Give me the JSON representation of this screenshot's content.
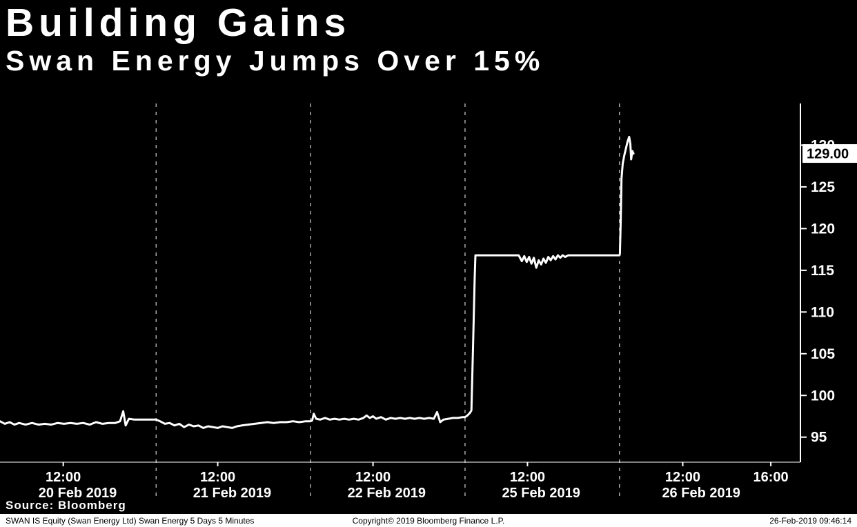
{
  "title": "Building Gains",
  "subtitle": "Swan Energy Jumps Over 15%",
  "source_label": "Source: Bloomberg",
  "last_price_label": "129.00",
  "footer": {
    "left": "SWAN IS Equity (Swan Energy Ltd) Swan Energy 5 Days 5 Minutes",
    "center": "Copyright© 2019 Bloomberg Finance L.P.",
    "right": "26-Feb-2019 09:46:14"
  },
  "colors": {
    "background": "#000000",
    "line": "#ffffff",
    "text": "#ffffff",
    "axis": "#ffffff",
    "last_price_box_bg": "#ffffff",
    "last_price_box_text": "#000000",
    "footer_bg": "#ffffff",
    "footer_text": "#000000"
  },
  "chart_data": {
    "type": "line",
    "title": "Building Gains",
    "subtitle": "Swan Energy Jumps Over 15%",
    "series_name": "SWAN IS Equity (Swan Energy Ltd) last price, 5 days 5 minutes",
    "ylim": [
      92,
      135
    ],
    "yticks": [
      95,
      100,
      105,
      110,
      115,
      120,
      125,
      130
    ],
    "last_price": 129.0,
    "grid": "vertical-day-separators-dashed",
    "legend": "none",
    "y_axis_position": "right",
    "day_separators": [
      0.195,
      0.388,
      0.581,
      0.774
    ],
    "x_time_ticks": [
      {
        "label": "12:00",
        "x": 0.079
      },
      {
        "label": "12:00",
        "x": 0.272
      },
      {
        "label": "12:00",
        "x": 0.466
      },
      {
        "label": "12:00",
        "x": 0.659
      },
      {
        "label": "12:00",
        "x": 0.853
      },
      {
        "label": "16:00",
        "x": 0.963
      }
    ],
    "x_date_labels": [
      {
        "label": "20 Feb 2019",
        "x": 0.097
      },
      {
        "label": "21 Feb 2019",
        "x": 0.29
      },
      {
        "label": "22 Feb 2019",
        "x": 0.483
      },
      {
        "label": "25 Feb 2019",
        "x": 0.676
      },
      {
        "label": "26 Feb 2019",
        "x": 0.876
      }
    ],
    "points": [
      [
        0.0,
        96.9
      ],
      [
        0.006,
        96.6
      ],
      [
        0.012,
        96.8
      ],
      [
        0.018,
        96.5
      ],
      [
        0.024,
        96.7
      ],
      [
        0.032,
        96.5
      ],
      [
        0.04,
        96.7
      ],
      [
        0.048,
        96.5
      ],
      [
        0.056,
        96.6
      ],
      [
        0.064,
        96.5
      ],
      [
        0.072,
        96.7
      ],
      [
        0.08,
        96.6
      ],
      [
        0.088,
        96.7
      ],
      [
        0.096,
        96.6
      ],
      [
        0.104,
        96.7
      ],
      [
        0.112,
        96.5
      ],
      [
        0.12,
        96.8
      ],
      [
        0.128,
        96.6
      ],
      [
        0.136,
        96.7
      ],
      [
        0.144,
        96.7
      ],
      [
        0.15,
        96.9
      ],
      [
        0.154,
        98.1
      ],
      [
        0.157,
        96.4
      ],
      [
        0.161,
        97.2
      ],
      [
        0.168,
        97.1
      ],
      [
        0.176,
        97.1
      ],
      [
        0.186,
        97.1
      ],
      [
        0.195,
        97.1
      ],
      [
        0.2,
        96.9
      ],
      [
        0.206,
        96.6
      ],
      [
        0.212,
        96.7
      ],
      [
        0.218,
        96.4
      ],
      [
        0.224,
        96.6
      ],
      [
        0.23,
        96.2
      ],
      [
        0.236,
        96.5
      ],
      [
        0.242,
        96.3
      ],
      [
        0.248,
        96.4
      ],
      [
        0.254,
        96.1
      ],
      [
        0.26,
        96.3
      ],
      [
        0.266,
        96.2
      ],
      [
        0.272,
        96.1
      ],
      [
        0.278,
        96.3
      ],
      [
        0.284,
        96.2
      ],
      [
        0.29,
        96.1
      ],
      [
        0.296,
        96.3
      ],
      [
        0.302,
        96.4
      ],
      [
        0.31,
        96.5
      ],
      [
        0.318,
        96.6
      ],
      [
        0.326,
        96.7
      ],
      [
        0.334,
        96.8
      ],
      [
        0.342,
        96.7
      ],
      [
        0.35,
        96.8
      ],
      [
        0.358,
        96.8
      ],
      [
        0.366,
        96.9
      ],
      [
        0.374,
        96.8
      ],
      [
        0.382,
        96.9
      ],
      [
        0.388,
        96.9
      ],
      [
        0.39,
        97.0
      ],
      [
        0.392,
        97.8
      ],
      [
        0.395,
        97.2
      ],
      [
        0.4,
        97.1
      ],
      [
        0.406,
        97.3
      ],
      [
        0.412,
        97.1
      ],
      [
        0.418,
        97.2
      ],
      [
        0.424,
        97.1
      ],
      [
        0.43,
        97.2
      ],
      [
        0.436,
        97.1
      ],
      [
        0.442,
        97.2
      ],
      [
        0.448,
        97.1
      ],
      [
        0.454,
        97.3
      ],
      [
        0.458,
        97.6
      ],
      [
        0.462,
        97.3
      ],
      [
        0.466,
        97.5
      ],
      [
        0.47,
        97.2
      ],
      [
        0.476,
        97.4
      ],
      [
        0.482,
        97.1
      ],
      [
        0.488,
        97.3
      ],
      [
        0.494,
        97.2
      ],
      [
        0.5,
        97.3
      ],
      [
        0.506,
        97.2
      ],
      [
        0.512,
        97.3
      ],
      [
        0.518,
        97.2
      ],
      [
        0.524,
        97.3
      ],
      [
        0.53,
        97.2
      ],
      [
        0.536,
        97.3
      ],
      [
        0.542,
        97.2
      ],
      [
        0.546,
        98.0
      ],
      [
        0.55,
        96.8
      ],
      [
        0.554,
        97.1
      ],
      [
        0.56,
        97.2
      ],
      [
        0.566,
        97.3
      ],
      [
        0.572,
        97.3
      ],
      [
        0.578,
        97.4
      ],
      [
        0.581,
        97.4
      ],
      [
        0.584,
        97.6
      ],
      [
        0.587,
        97.9
      ],
      [
        0.589,
        98.2
      ],
      [
        0.591,
        106.0
      ],
      [
        0.593,
        114.0
      ],
      [
        0.594,
        116.8
      ],
      [
        0.605,
        116.8
      ],
      [
        0.62,
        116.8
      ],
      [
        0.635,
        116.8
      ],
      [
        0.648,
        116.8
      ],
      [
        0.652,
        116.1
      ],
      [
        0.655,
        116.7
      ],
      [
        0.658,
        116.0
      ],
      [
        0.661,
        116.6
      ],
      [
        0.664,
        115.8
      ],
      [
        0.667,
        116.5
      ],
      [
        0.67,
        115.3
      ],
      [
        0.673,
        116.2
      ],
      [
        0.676,
        115.7
      ],
      [
        0.679,
        116.4
      ],
      [
        0.682,
        115.9
      ],
      [
        0.685,
        116.6
      ],
      [
        0.688,
        116.2
      ],
      [
        0.691,
        116.7
      ],
      [
        0.694,
        116.3
      ],
      [
        0.697,
        116.8
      ],
      [
        0.7,
        116.5
      ],
      [
        0.703,
        116.8
      ],
      [
        0.706,
        116.6
      ],
      [
        0.71,
        116.8
      ],
      [
        0.72,
        116.8
      ],
      [
        0.735,
        116.8
      ],
      [
        0.75,
        116.8
      ],
      [
        0.765,
        116.8
      ],
      [
        0.774,
        116.8
      ],
      [
        0.7745,
        117.0
      ],
      [
        0.7755,
        121.0
      ],
      [
        0.7765,
        126.0
      ],
      [
        0.778,
        127.8
      ],
      [
        0.78,
        128.8
      ],
      [
        0.782,
        129.6
      ],
      [
        0.784,
        130.4
      ],
      [
        0.786,
        131.0
      ],
      [
        0.7875,
        130.2
      ],
      [
        0.7885,
        128.3
      ],
      [
        0.79,
        129.3
      ],
      [
        0.7915,
        129.0
      ]
    ]
  }
}
